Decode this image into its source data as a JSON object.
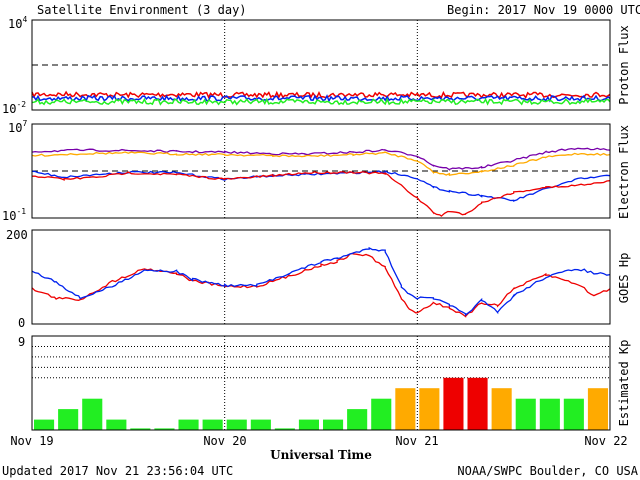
{
  "header": {
    "title": "Satellite Environment (3 day)",
    "begin": "Begin:  2017 Nov 19 0000 UTC"
  },
  "footer": {
    "updated": "Updated 2017 Nov 21 23:56:04 UTC",
    "credit": "NOAA/SWPC Boulder, CO USA"
  },
  "x_axis": {
    "title": "Universal Time",
    "ticks": [
      "Nov 19",
      "Nov 20",
      "Nov 21",
      "Nov 22"
    ]
  },
  "colors": {
    "red": "#ee0000",
    "blue": "#0022ee",
    "green": "#22ee22",
    "orange": "#ffaa00",
    "purple": "#7700aa",
    "kp_quiet": "#22ee22",
    "kp_active": "#ffcc00",
    "kp_storm": "#ee0000"
  },
  "chart_data": [
    {
      "id": "proton",
      "type": "line",
      "ylabel": "Proton Flux",
      "yscale": "log",
      "ylim": [
        0.01,
        10000
      ],
      "ytick_labels": [
        {
          "base": "10",
          "exp": "4"
        },
        {
          "base": "10",
          "exp": "-2"
        }
      ],
      "threshold": 10,
      "series": [
        {
          "color": "red",
          "x": [
            0,
            6,
            12,
            18,
            24,
            30,
            36,
            42,
            48,
            54,
            60,
            66,
            72
          ],
          "y": [
            0.11,
            0.11,
            0.1,
            0.11,
            0.1,
            0.1,
            0.1,
            0.11,
            0.1,
            0.1,
            0.1,
            0.1,
            0.11
          ]
        },
        {
          "color": "blue",
          "x": [
            0,
            6,
            12,
            18,
            24,
            30,
            36,
            42,
            48,
            54,
            60,
            66,
            72
          ],
          "y": [
            0.06,
            0.06,
            0.06,
            0.06,
            0.06,
            0.06,
            0.06,
            0.06,
            0.06,
            0.06,
            0.06,
            0.06,
            0.06
          ]
        },
        {
          "color": "green",
          "x": [
            0,
            6,
            12,
            18,
            24,
            30,
            36,
            42,
            48,
            54,
            60,
            66,
            72
          ],
          "y": [
            0.035,
            0.035,
            0.035,
            0.035,
            0.035,
            0.035,
            0.035,
            0.035,
            0.035,
            0.035,
            0.035,
            0.035,
            0.035
          ]
        }
      ]
    },
    {
      "id": "electron",
      "type": "line",
      "ylabel": "Electron Flux",
      "yscale": "log",
      "ylim": [
        0.1,
        10000000
      ],
      "ytick_labels": [
        {
          "base": "10",
          "exp": "7"
        },
        {
          "base": "10",
          "exp": "-1"
        }
      ],
      "threshold": 1000,
      "series": [
        {
          "color": "purple",
          "x": [
            0,
            6,
            12,
            18,
            24,
            30,
            34,
            40,
            44,
            48,
            50,
            52,
            56,
            60,
            64,
            68,
            72
          ],
          "y": [
            45000,
            60000,
            55000,
            45000,
            40000,
            30000,
            28000,
            40000,
            60000,
            20000,
            3000,
            1500,
            2000,
            8000,
            40000,
            90000,
            60000
          ]
        },
        {
          "color": "orange",
          "x": [
            0,
            6,
            12,
            18,
            24,
            30,
            34,
            40,
            44,
            48,
            50,
            52,
            56,
            60,
            64,
            68,
            72
          ],
          "y": [
            20000,
            30000,
            35000,
            28000,
            25000,
            20000,
            18000,
            25000,
            35000,
            8000,
            800,
            500,
            900,
            3000,
            15000,
            30000,
            25000
          ]
        },
        {
          "color": "blue",
          "x": [
            0,
            4,
            8,
            12,
            18,
            24,
            30,
            34,
            40,
            44,
            48,
            50,
            52,
            56,
            60,
            64,
            68,
            72
          ],
          "y": [
            900,
            300,
            500,
            800,
            700,
            200,
            400,
            500,
            700,
            900,
            250,
            40,
            20,
            8,
            3,
            30,
            200,
            400
          ]
        },
        {
          "color": "red",
          "x": [
            0,
            4,
            8,
            12,
            18,
            24,
            30,
            34,
            40,
            44,
            48,
            50,
            51,
            52,
            54,
            56,
            60,
            64,
            68,
            72
          ],
          "y": [
            400,
            200,
            300,
            700,
            500,
            200,
            400,
            700,
            800,
            600,
            5,
            0.3,
            0.15,
            0.4,
            0.2,
            2,
            15,
            40,
            60,
            150
          ]
        }
      ]
    },
    {
      "id": "goes_hp",
      "type": "line",
      "ylabel": "GOES Hp",
      "ylim": [
        0,
        200
      ],
      "ytick_labels": [
        "200",
        "0"
      ],
      "series": [
        {
          "color": "red",
          "x": [
            0,
            3,
            6,
            10,
            14,
            18,
            20,
            24,
            28,
            32,
            36,
            38,
            40,
            42,
            44,
            46,
            47,
            48,
            50,
            52,
            54,
            56,
            58,
            60,
            64,
            68,
            70,
            72
          ],
          "y": [
            75,
            55,
            52,
            90,
            118,
            108,
            92,
            80,
            80,
            102,
            125,
            133,
            150,
            145,
            120,
            55,
            30,
            25,
            45,
            35,
            15,
            45,
            40,
            75,
            105,
            85,
            60,
            75
          ]
        },
        {
          "color": "blue",
          "x": [
            0,
            3,
            6,
            10,
            14,
            18,
            20,
            24,
            28,
            32,
            36,
            38,
            40,
            42,
            44,
            46,
            47,
            48,
            50,
            52,
            54,
            56,
            58,
            60,
            64,
            68,
            70,
            72
          ],
          "y": [
            112,
            90,
            55,
            80,
            115,
            112,
            95,
            82,
            82,
            108,
            132,
            140,
            150,
            162,
            155,
            80,
            65,
            55,
            55,
            40,
            20,
            50,
            25,
            60,
            100,
            118,
            108,
            105
          ]
        }
      ]
    },
    {
      "id": "kp",
      "type": "bar",
      "ylabel": "Estimated Kp",
      "ylim": [
        0,
        9
      ],
      "ytick_labels": [
        "9"
      ],
      "gridlines": [
        5,
        6,
        7,
        8
      ],
      "interval_hours": 3,
      "values": [
        1,
        2,
        3,
        1,
        0,
        0,
        1,
        1,
        1,
        1,
        0,
        1,
        1,
        2,
        3,
        4,
        4,
        5,
        5,
        4,
        3,
        3,
        3,
        4
      ],
      "colors": [
        "green",
        "green",
        "green",
        "green",
        "green",
        "green",
        "green",
        "green",
        "green",
        "green",
        "green",
        "green",
        "green",
        "green",
        "green",
        "orange",
        "orange",
        "red",
        "red",
        "orange",
        "green",
        "green",
        "green",
        "orange"
      ]
    }
  ]
}
